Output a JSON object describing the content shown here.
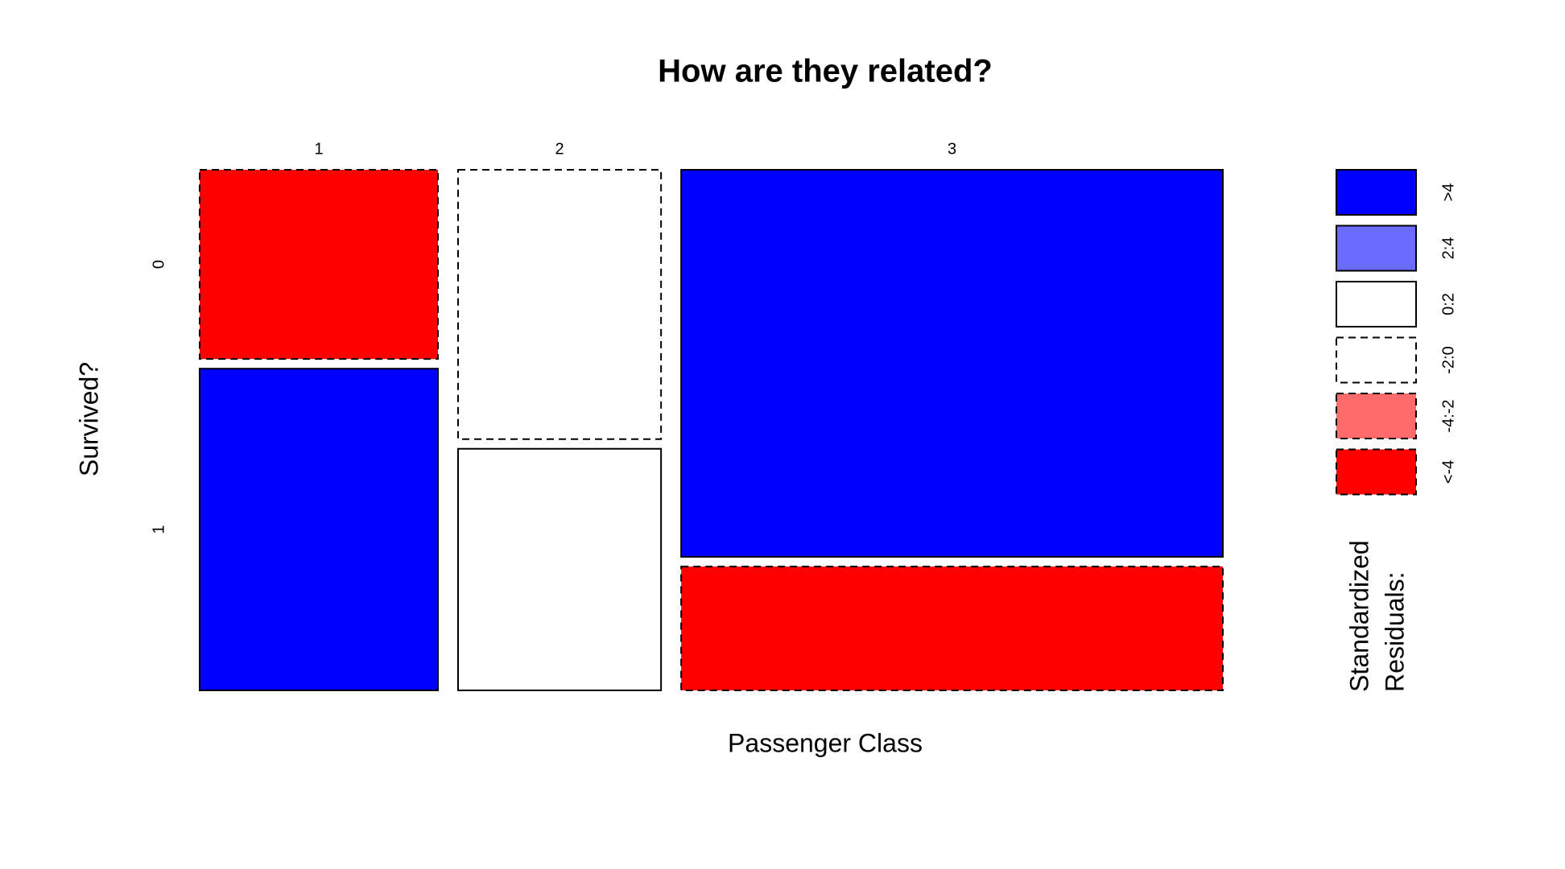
{
  "chart_data": {
    "type": "mosaic",
    "title": "How are they related?",
    "x_label": "Passenger Class",
    "y_label": "Survived?",
    "categories": [
      "1",
      "2",
      "3"
    ],
    "rows": [
      "0",
      "1"
    ],
    "cells": [
      [
        {
          "count": 80,
          "color": "#ff0000",
          "dashed": true
        },
        {
          "count": 136,
          "color": "#0000ff",
          "dashed": false
        }
      ],
      [
        {
          "count": 97,
          "color": "#ffffff",
          "dashed": true
        },
        {
          "count": 87,
          "color": "#ffffff",
          "dashed": false
        }
      ],
      [
        {
          "count": 372,
          "color": "#0000ff",
          "dashed": false
        },
        {
          "count": 119,
          "color": "#ff0000",
          "dashed": true
        }
      ]
    ],
    "legend": {
      "title": [
        "Standardized",
        "Residuals:"
      ],
      "items": [
        {
          "label": ">4",
          "color": "#0000ff",
          "dashed": false
        },
        {
          "label": "2:4",
          "color": "#6b6bff",
          "dashed": false
        },
        {
          "label": "0:2",
          "color": "#ffffff",
          "dashed": false
        },
        {
          "label": "-2:0",
          "color": "#ffffff",
          "dashed": true
        },
        {
          "label": "-4:-2",
          "color": "#ff6b6b",
          "dashed": true
        },
        {
          "label": "<-4",
          "color": "#ff0000",
          "dashed": true
        }
      ]
    }
  }
}
